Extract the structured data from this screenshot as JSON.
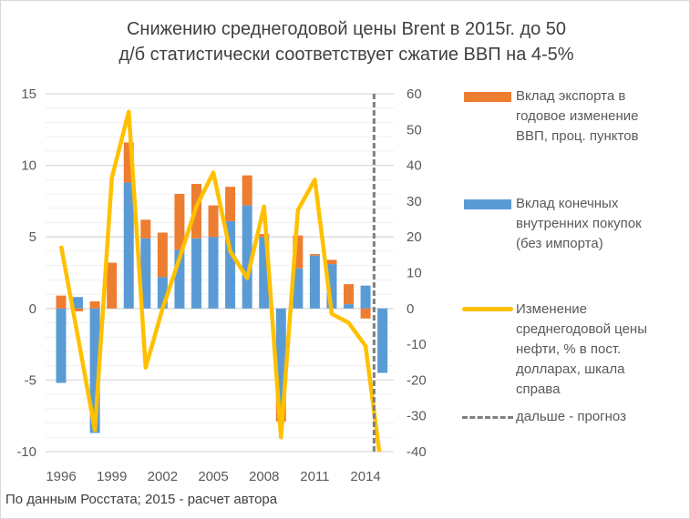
{
  "chart_data": {
    "type": "bar",
    "title_lines": [
      "Снижению среднегодовой цены Brent в 2015г. до 50",
      "д/б статистически соответствует сжатие ВВП на 4-5%"
    ],
    "categories": [
      "1996",
      "1997",
      "1998",
      "1999",
      "2000",
      "2001",
      "2002",
      "2003",
      "2004",
      "2005",
      "2006",
      "2007",
      "2008",
      "2009",
      "2010",
      "2011",
      "2012",
      "2013",
      "2014",
      "2015"
    ],
    "x_tick_labels": [
      "1996",
      "1999",
      "2002",
      "2005",
      "2008",
      "2011",
      "2014"
    ],
    "y_left": {
      "lim": [
        -10,
        15
      ],
      "ticks": [
        -10,
        -5,
        0,
        5,
        10,
        15
      ]
    },
    "y_right": {
      "lim": [
        -40,
        60
      ],
      "ticks": [
        -40,
        -30,
        -20,
        -10,
        0,
        10,
        20,
        30,
        40,
        50,
        60
      ]
    },
    "stacked": true,
    "grid": true,
    "legend_position": "right",
    "series": [
      {
        "name_lines": [
          "Вклад экспорта в",
          "годовое изменение",
          "ВВП, проц. пунктов"
        ],
        "type": "bar",
        "axis": "left",
        "color": "#ED7D31",
        "values": [
          0.9,
          -0.2,
          0.5,
          3.2,
          2.8,
          1.3,
          3.1,
          3.9,
          3.8,
          2.2,
          2.4,
          2.1,
          0.2,
          -1.3,
          2.3,
          0.1,
          0.3,
          1.4,
          -0.7,
          null
        ]
      },
      {
        "name_lines": [
          "Вклад конечных",
          "внутренних покупок",
          "(без импорта)"
        ],
        "type": "bar",
        "axis": "left",
        "color": "#5B9BD5",
        "values": [
          -5.2,
          0.8,
          -8.7,
          0,
          8.8,
          4.9,
          2.2,
          4.1,
          4.9,
          5.0,
          6.1,
          7.2,
          5.0,
          -6.6,
          2.8,
          3.7,
          3.1,
          0.3,
          1.6,
          -4.5
        ]
      },
      {
        "name_lines": [
          "Изменение",
          "среднегодовой цены",
          "нефти, % в пост.",
          "долларах, шкала",
          "справа"
        ],
        "type": "line",
        "axis": "right",
        "color": "#FFC000",
        "values": [
          17.5,
          -8,
          -34,
          36.5,
          55,
          -16.5,
          0,
          14,
          28.5,
          38,
          16,
          8.5,
          28.5,
          -36,
          27.5,
          36,
          -1.5,
          -4,
          -10.5,
          -47
        ]
      },
      {
        "name": "дальше - прогноз",
        "type": "vline",
        "color": "#7F7F7F",
        "position_after": "2014"
      }
    ],
    "source": "По данным Росстата; 2015 - расчет автора"
  }
}
